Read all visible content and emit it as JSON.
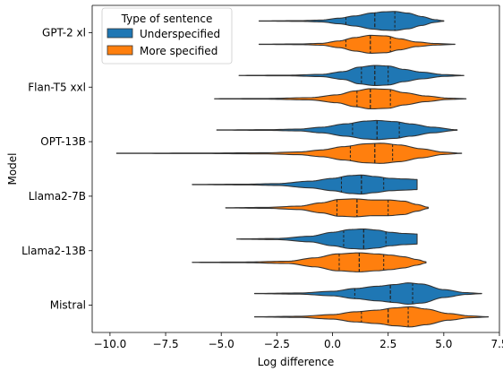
{
  "colors": {
    "Underspecified": "#1f77b4",
    "More specified": "#ff7f0e",
    "stroke": "#333333",
    "quartile": "#222222"
  },
  "chart_data": {
    "type": "violin",
    "orientation": "horizontal",
    "xlabel": "Log difference",
    "ylabel": "Model",
    "xlim": [
      -10.8,
      7.5
    ],
    "xticks": [
      -10.0,
      -7.5,
      -5.0,
      -2.5,
      0.0,
      2.5,
      5.0,
      7.5
    ],
    "xtick_labels": [
      "−10.0",
      "−7.5",
      "−5.0",
      "−2.5",
      "0.0",
      "2.5",
      "5.0",
      "7.5"
    ],
    "grid": false,
    "legend": {
      "title": "Type of sentence",
      "placement": "top-left",
      "entries": [
        "Underspecified",
        "More specified"
      ]
    },
    "categories": [
      "GPT-2 xl",
      "Flan-T5 xxl",
      "OPT-13B",
      "Llama2-7B",
      "Llama2-13B",
      "Mistral"
    ],
    "series": [
      {
        "name": "Underspecified",
        "violins": [
          {
            "min": -3.3,
            "max": 5.0,
            "q1": 0.6,
            "median": 1.9,
            "q3": 2.8,
            "density": [
              [
                -3.3,
                0.01
              ],
              [
                -1.5,
                0.03
              ],
              [
                -0.5,
                0.08
              ],
              [
                0.3,
                0.25
              ],
              [
                1.0,
                0.45
              ],
              [
                1.8,
                0.72
              ],
              [
                2.3,
                0.82
              ],
              [
                2.8,
                0.85
              ],
              [
                3.4,
                0.7
              ],
              [
                4.0,
                0.4
              ],
              [
                4.6,
                0.12
              ],
              [
                5.0,
                0.02
              ]
            ]
          },
          {
            "min": -4.2,
            "max": 5.9,
            "q1": 1.3,
            "median": 1.9,
            "q3": 2.5,
            "density": [
              [
                -4.2,
                0.01
              ],
              [
                -2.0,
                0.03
              ],
              [
                -0.5,
                0.1
              ],
              [
                0.5,
                0.35
              ],
              [
                1.2,
                0.75
              ],
              [
                1.9,
                0.9
              ],
              [
                2.5,
                0.85
              ],
              [
                3.2,
                0.55
              ],
              [
                4.0,
                0.3
              ],
              [
                5.0,
                0.08
              ],
              [
                5.9,
                0.01
              ]
            ]
          },
          {
            "min": -5.2,
            "max": 5.6,
            "q1": 0.9,
            "median": 2.0,
            "q3": 3.0,
            "density": [
              [
                -5.2,
                0.01
              ],
              [
                -3.0,
                0.03
              ],
              [
                -1.5,
                0.08
              ],
              [
                -0.5,
                0.25
              ],
              [
                0.6,
                0.55
              ],
              [
                1.5,
                0.8
              ],
              [
                2.0,
                0.85
              ],
              [
                2.8,
                0.75
              ],
              [
                3.5,
                0.55
              ],
              [
                4.5,
                0.25
              ],
              [
                5.6,
                0.02
              ]
            ]
          },
          {
            "min": -6.3,
            "max": 3.8,
            "q1": 0.4,
            "median": 1.3,
            "q3": 2.3,
            "density": [
              [
                -6.3,
                0.01
              ],
              [
                -4.0,
                0.03
              ],
              [
                -2.5,
                0.08
              ],
              [
                -1.0,
                0.3
              ],
              [
                0.0,
                0.55
              ],
              [
                0.8,
                0.8
              ],
              [
                1.3,
                0.85
              ],
              [
                1.9,
                0.72
              ],
              [
                2.6,
                0.55
              ],
              [
                3.2,
                0.5
              ],
              [
                3.8,
                0.45
              ]
            ]
          },
          {
            "min": -4.3,
            "max": 3.8,
            "q1": 0.5,
            "median": 1.4,
            "q3": 2.4,
            "density": [
              [
                -4.3,
                0.01
              ],
              [
                -2.5,
                0.05
              ],
              [
                -1.0,
                0.25
              ],
              [
                0.0,
                0.6
              ],
              [
                0.8,
                0.85
              ],
              [
                1.4,
                0.9
              ],
              [
                2.0,
                0.8
              ],
              [
                2.6,
                0.6
              ],
              [
                3.2,
                0.5
              ],
              [
                3.8,
                0.45
              ]
            ]
          },
          {
            "min": -3.5,
            "max": 6.7,
            "q1": 1.0,
            "median": 2.6,
            "q3": 3.6,
            "density": [
              [
                -3.5,
                0.01
              ],
              [
                -1.5,
                0.05
              ],
              [
                0.0,
                0.2
              ],
              [
                1.0,
                0.45
              ],
              [
                2.0,
                0.65
              ],
              [
                2.8,
                0.8
              ],
              [
                3.4,
                0.95
              ],
              [
                4.0,
                0.85
              ],
              [
                5.0,
                0.35
              ],
              [
                6.0,
                0.08
              ],
              [
                6.7,
                0.01
              ]
            ]
          }
        ]
      },
      {
        "name": "More specified",
        "violins": [
          {
            "min": -3.3,
            "max": 5.5,
            "q1": 0.6,
            "median": 1.7,
            "q3": 2.6,
            "density": [
              [
                -3.3,
                0.01
              ],
              [
                -1.5,
                0.03
              ],
              [
                -0.5,
                0.08
              ],
              [
                0.3,
                0.3
              ],
              [
                1.0,
                0.6
              ],
              [
                1.7,
                0.8
              ],
              [
                2.4,
                0.75
              ],
              [
                3.0,
                0.5
              ],
              [
                3.8,
                0.2
              ],
              [
                4.6,
                0.07
              ],
              [
                5.5,
                0.01
              ]
            ]
          },
          {
            "min": -5.3,
            "max": 6.0,
            "q1": 1.1,
            "median": 1.7,
            "q3": 2.6,
            "density": [
              [
                -5.3,
                0.01
              ],
              [
                -3.0,
                0.03
              ],
              [
                -1.0,
                0.1
              ],
              [
                0.2,
                0.35
              ],
              [
                1.0,
                0.7
              ],
              [
                1.7,
                0.9
              ],
              [
                2.5,
                0.85
              ],
              [
                3.2,
                0.55
              ],
              [
                4.2,
                0.25
              ],
              [
                5.2,
                0.06
              ],
              [
                6.0,
                0.01
              ]
            ]
          },
          {
            "min": -9.7,
            "max": 5.8,
            "q1": 0.8,
            "median": 1.9,
            "q3": 2.7,
            "density": [
              [
                -9.7,
                0.01
              ],
              [
                -6.0,
                0.02
              ],
              [
                -3.0,
                0.05
              ],
              [
                -1.5,
                0.12
              ],
              [
                -0.5,
                0.3
              ],
              [
                0.5,
                0.6
              ],
              [
                1.5,
                0.85
              ],
              [
                2.2,
                0.9
              ],
              [
                3.0,
                0.75
              ],
              [
                4.0,
                0.4
              ],
              [
                5.0,
                0.1
              ],
              [
                5.8,
                0.01
              ]
            ]
          },
          {
            "min": -4.8,
            "max": 4.3,
            "q1": 0.2,
            "median": 1.1,
            "q3": 2.5,
            "density": [
              [
                -4.8,
                0.01
              ],
              [
                -3.0,
                0.04
              ],
              [
                -1.5,
                0.15
              ],
              [
                -0.5,
                0.45
              ],
              [
                0.3,
                0.75
              ],
              [
                1.0,
                0.8
              ],
              [
                1.8,
                0.7
              ],
              [
                2.5,
                0.7
              ],
              [
                3.2,
                0.6
              ],
              [
                3.8,
                0.3
              ],
              [
                4.3,
                0.05
              ]
            ]
          },
          {
            "min": -6.3,
            "max": 4.2,
            "q1": 0.3,
            "median": 1.2,
            "q3": 2.3,
            "density": [
              [
                -6.3,
                0.01
              ],
              [
                -4.0,
                0.03
              ],
              [
                -2.0,
                0.1
              ],
              [
                -0.8,
                0.4
              ],
              [
                0.2,
                0.75
              ],
              [
                1.2,
                0.85
              ],
              [
                2.0,
                0.75
              ],
              [
                2.6,
                0.65
              ],
              [
                3.2,
                0.5
              ],
              [
                3.8,
                0.25
              ],
              [
                4.2,
                0.05
              ]
            ]
          },
          {
            "min": -3.5,
            "max": 7.0,
            "q1": 1.3,
            "median": 2.5,
            "q3": 3.4,
            "density": [
              [
                -3.5,
                0.01
              ],
              [
                -1.5,
                0.05
              ],
              [
                0.0,
                0.2
              ],
              [
                1.0,
                0.45
              ],
              [
                2.0,
                0.6
              ],
              [
                2.8,
                0.8
              ],
              [
                3.5,
                0.9
              ],
              [
                4.2,
                0.7
              ],
              [
                5.2,
                0.3
              ],
              [
                6.2,
                0.08
              ],
              [
                7.0,
                0.01
              ]
            ]
          }
        ]
      }
    ]
  }
}
